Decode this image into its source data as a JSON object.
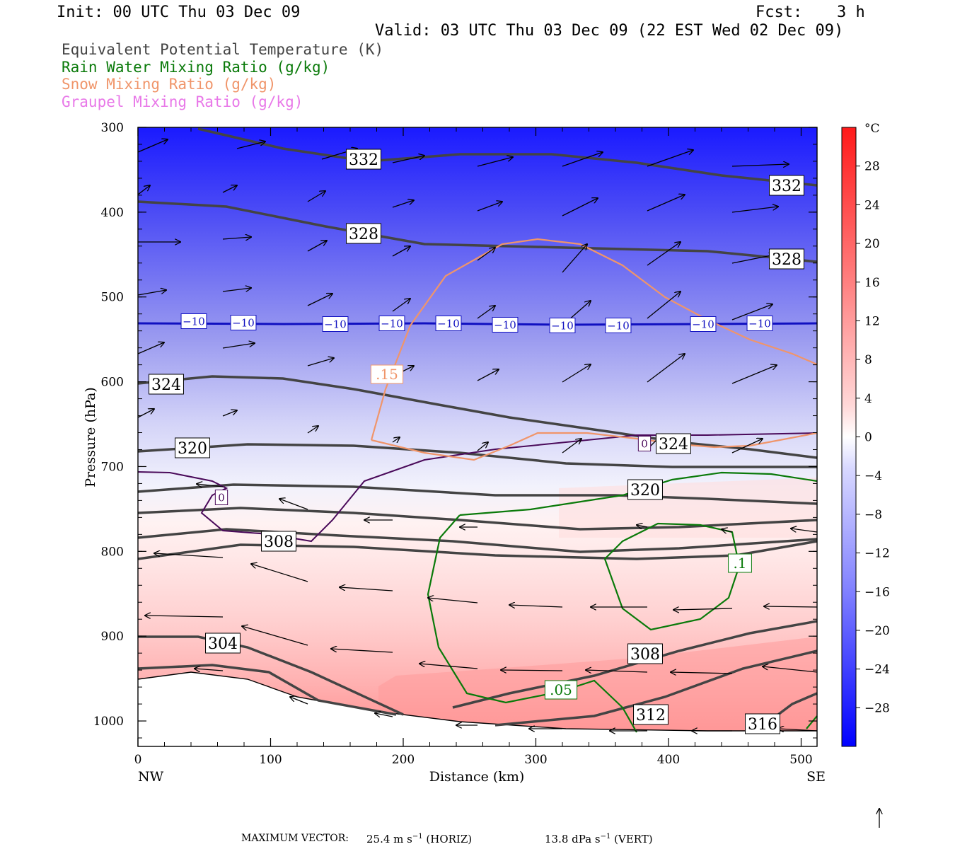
{
  "header": {
    "init": "Init: 00 UTC Thu 03 Dec 09",
    "fcst_label": "Fcst:",
    "fcst_value": "3 h",
    "valid": "Valid: 03 UTC Thu 03 Dec 09 (22 EST Wed 02 Dec 09)"
  },
  "legend": [
    {
      "label": "Equivalent Potential Temperature (K)",
      "color": "#444444"
    },
    {
      "label": "Rain Water Mixing Ratio (g/kg)",
      "color": "#0a7a0a"
    },
    {
      "label": "Snow Mixing Ratio (g/kg)",
      "color": "#f0956a"
    },
    {
      "label": "Graupel Mixing Ratio (g/kg)",
      "color": "#e878e8"
    }
  ],
  "chart_data": {
    "type": "cross-section",
    "xlabel": "Distance (km)",
    "ylabel": "Pressure (hPa)",
    "xlim": [
      0,
      512
    ],
    "ylim": [
      1030,
      300
    ],
    "x_ticks": [
      0,
      100,
      200,
      300,
      400,
      500
    ],
    "y_ticks": [
      300,
      400,
      500,
      600,
      700,
      800,
      900,
      1000
    ],
    "x_end_labels": {
      "left": "NW",
      "right": "SE"
    },
    "colorbar": {
      "unit": "°C",
      "ticks": [
        "28",
        "24",
        "20",
        "16",
        "12",
        "8",
        "4",
        "0",
        "−4",
        "−8",
        "−12",
        "−16",
        "−20",
        "−24",
        "−28"
      ],
      "range": [
        -32,
        32
      ]
    },
    "theta_e_labels": [
      "332",
      "332",
      "328",
      "328",
      "324",
      "324",
      "320",
      "320",
      "308",
      "308",
      "304",
      "312",
      "316"
    ],
    "isotherm_labels": [
      "−10",
      "−10",
      "−10",
      "−10",
      "−10",
      "−10",
      "−10",
      "−10",
      "−10",
      "−10",
      "0",
      "0"
    ],
    "snow_labels": [
      ".15"
    ],
    "rain_labels": [
      ".1",
      ".05"
    ]
  },
  "footer": {
    "max_vector_label": "MAXIMUM VECTOR:",
    "horiz_value": "25.4 m s",
    "horiz_sup": "−1",
    "horiz_tag": "(HORIZ)",
    "vert_value": "13.8 dPa s",
    "vert_sup": "−1",
    "vert_tag": "(VERT)"
  }
}
